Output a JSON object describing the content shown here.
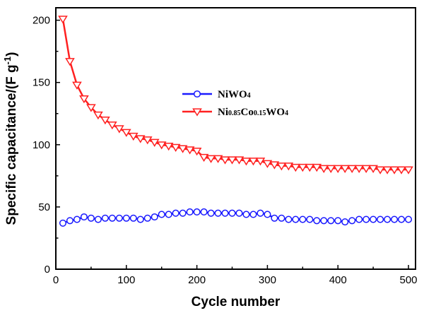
{
  "chart_data": {
    "type": "line",
    "xlabel": "Cycle number",
    "ylabel_main": "Specific capacitance/(F g",
    "ylabel_sup": "-1",
    "ylabel_end": ")",
    "xlim": [
      0,
      510
    ],
    "ylim": [
      0,
      210
    ],
    "xticks": [
      0,
      100,
      200,
      300,
      400,
      500
    ],
    "yticks": [
      0,
      50,
      100,
      150,
      200
    ],
    "legend_position": "center",
    "series": [
      {
        "name": "NiWO4",
        "name_parts": [
          [
            "Ni",
            false
          ],
          [
            "WO",
            false
          ],
          [
            "4",
            true
          ]
        ],
        "color": "#1a1aff",
        "marker": "circle",
        "x": [
          10,
          20,
          30,
          40,
          50,
          60,
          70,
          80,
          90,
          100,
          110,
          120,
          130,
          140,
          150,
          160,
          170,
          180,
          190,
          200,
          210,
          220,
          230,
          240,
          250,
          260,
          270,
          280,
          290,
          300,
          310,
          320,
          330,
          340,
          350,
          360,
          370,
          380,
          390,
          400,
          410,
          420,
          430,
          440,
          450,
          460,
          470,
          480,
          490,
          500
        ],
        "y": [
          37,
          39,
          40,
          42,
          41,
          40,
          41,
          41,
          41,
          41,
          41,
          40,
          41,
          42,
          44,
          44,
          45,
          45,
          46,
          46,
          46,
          45,
          45,
          45,
          45,
          45,
          44,
          44,
          45,
          44,
          41,
          41,
          40,
          40,
          40,
          40,
          39,
          39,
          39,
          39,
          38,
          39,
          40,
          40,
          40,
          40,
          40,
          40,
          40,
          40
        ]
      },
      {
        "name": "Ni0.85Co0.15WO4",
        "name_parts": [
          [
            "Ni",
            false
          ],
          [
            "0.85",
            true
          ],
          [
            "Co",
            false
          ],
          [
            "0.15",
            true
          ],
          [
            "WO",
            false
          ],
          [
            "4",
            true
          ]
        ],
        "color": "#ff2020",
        "marker": "triangle-down",
        "x": [
          10,
          20,
          30,
          40,
          50,
          60,
          70,
          80,
          90,
          100,
          110,
          120,
          130,
          140,
          150,
          160,
          170,
          180,
          190,
          200,
          210,
          220,
          230,
          240,
          250,
          260,
          270,
          280,
          290,
          300,
          310,
          320,
          330,
          340,
          350,
          360,
          370,
          380,
          390,
          400,
          410,
          420,
          430,
          440,
          450,
          460,
          470,
          480,
          490,
          500
        ],
        "y": [
          201,
          167,
          148,
          137,
          130,
          124,
          120,
          116,
          113,
          110,
          107,
          105,
          104,
          102,
          100,
          99,
          98,
          97,
          96,
          95,
          90,
          89,
          89,
          88,
          88,
          88,
          87,
          87,
          87,
          85,
          84,
          83,
          83,
          82,
          82,
          82,
          82,
          81,
          81,
          81,
          81,
          81,
          81,
          81,
          81,
          80,
          80,
          80,
          80,
          80
        ]
      }
    ]
  }
}
